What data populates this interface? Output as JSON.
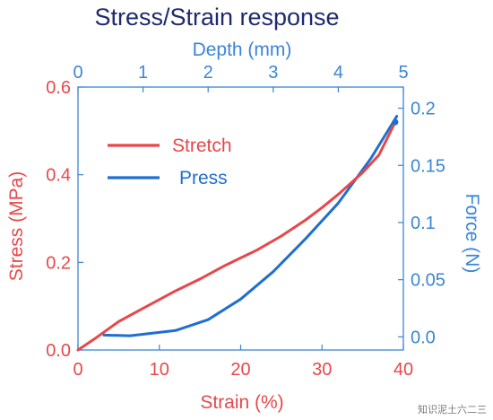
{
  "chart_data": {
    "type": "line",
    "title": "Stress/Strain response",
    "xlabel": "Strain (%)",
    "ylabel": "Stress (MPa)",
    "x2label": "Depth (mm)",
    "y2label": "Force (N)",
    "xlim": [
      0,
      40
    ],
    "ylim": [
      0,
      0.6
    ],
    "x2lim": [
      0,
      5
    ],
    "y2lim": [
      -0.0115,
      0.2185
    ],
    "xticks": [
      "0",
      "10",
      "20",
      "30",
      "40"
    ],
    "yticks": [
      "0.0",
      "0.2",
      "0.4",
      "0.6"
    ],
    "x2ticks": [
      "0",
      "1",
      "2",
      "3",
      "4",
      "5"
    ],
    "y2ticks": [
      "0.0",
      "0.05",
      "0.1",
      "0.15",
      "0.2"
    ],
    "legend_position": "top-left",
    "colors": {
      "stretch": "#e8474a",
      "press": "#1f6fd1",
      "right_axis": "#3a86d6",
      "title": "#1f2a6e"
    },
    "series": [
      {
        "name": "Stretch",
        "axis": "left",
        "x": [
          0,
          2,
          5,
          8,
          10,
          12,
          15,
          18,
          20,
          22,
          25,
          28,
          30,
          32,
          35,
          37,
          39
        ],
        "y": [
          0,
          0.025,
          0.065,
          0.095,
          0.115,
          0.135,
          0.162,
          0.192,
          0.21,
          0.228,
          0.26,
          0.297,
          0.325,
          0.355,
          0.405,
          0.445,
          0.52
        ]
      },
      {
        "name": "Press",
        "axis": "right",
        "x": [
          0.4,
          0.8,
          1.5,
          2,
          2.5,
          3,
          3.5,
          4,
          4.5,
          4.9
        ],
        "y": [
          0.0015,
          0.001,
          0.0055,
          0.015,
          0.033,
          0.057,
          0.086,
          0.117,
          0.156,
          0.193
        ]
      }
    ]
  },
  "watermark": "知识泥土六二三"
}
